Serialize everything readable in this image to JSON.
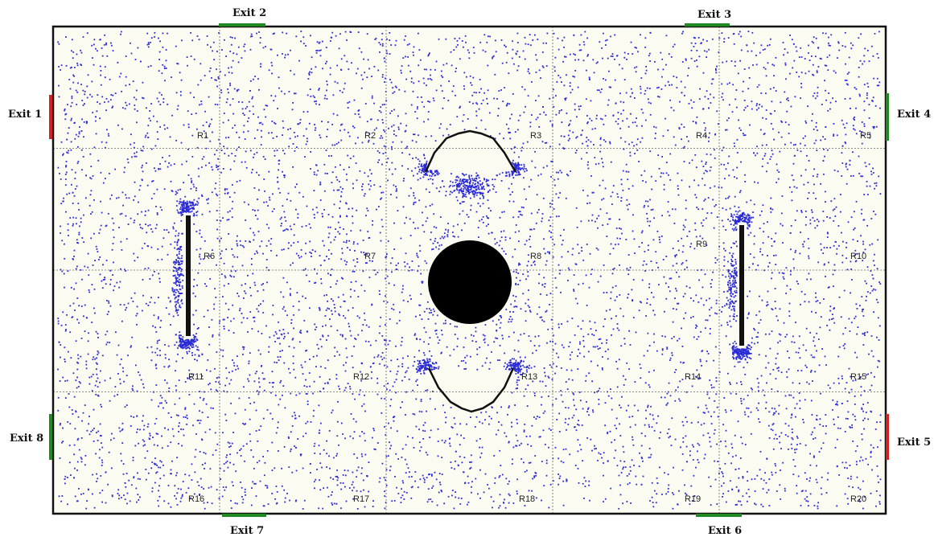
{
  "colors": {
    "pedestrian": "#2a2ad6",
    "exit_open": "#1f8a1f",
    "exit_closed": "#d42020",
    "wall": "#111111",
    "grid": "#666666"
  },
  "exits": [
    {
      "id": "exit-1",
      "label": "Exit 1",
      "status": "closed"
    },
    {
      "id": "exit-2",
      "label": "Exit 2",
      "status": "open"
    },
    {
      "id": "exit-3",
      "label": "Exit 3",
      "status": "open"
    },
    {
      "id": "exit-4",
      "label": "Exit 4",
      "status": "open"
    },
    {
      "id": "exit-5",
      "label": "Exit 5",
      "status": "closed"
    },
    {
      "id": "exit-6",
      "label": "Exit 6",
      "status": "open"
    },
    {
      "id": "exit-7",
      "label": "Exit 7",
      "status": "open"
    },
    {
      "id": "exit-8",
      "label": "Exit 8",
      "status": "open"
    }
  ],
  "regions": [
    "R1",
    "R2",
    "R3",
    "R4",
    "R5",
    "R6",
    "R7",
    "R8",
    "R9",
    "R10",
    "R11",
    "R12",
    "R13",
    "R14",
    "R15",
    "R16",
    "R17",
    "R18",
    "R19",
    "R20"
  ],
  "grid": {
    "columns": 5,
    "rows": 4
  },
  "obstacles": [
    "left-wall-bar",
    "right-wall-bar",
    "central-pillar",
    "upper-arc-barrier",
    "lower-arc-barrier"
  ]
}
